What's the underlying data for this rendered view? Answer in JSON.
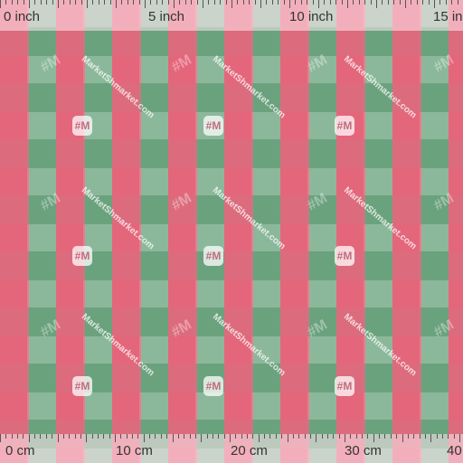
{
  "fabric": {
    "pattern": "gingham-check",
    "colors": {
      "pink": "#ff8da2",
      "dark_pink": "#e8788c",
      "green": "#86bc9c"
    }
  },
  "ruler_top": {
    "labels": [
      "0 inch",
      "5 inch",
      "10 inch",
      "15 in"
    ]
  },
  "ruler_bottom": {
    "labels": [
      "0 cm",
      "10 cm",
      "20 cm",
      "30 cm",
      "40"
    ]
  },
  "watermark": {
    "text": "MarketShmarket.com",
    "logo": "#M"
  }
}
